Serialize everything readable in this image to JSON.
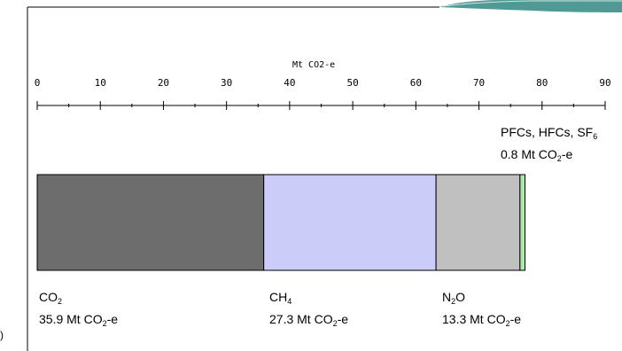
{
  "chart_data": {
    "type": "bar",
    "orientation": "horizontal-stacked",
    "axis": {
      "title": "Mt CO2-e",
      "position": "top",
      "range": [
        0,
        90
      ],
      "ticks": [
        "0",
        "10",
        "20",
        "30",
        "40",
        "50",
        "60",
        "70",
        "80",
        "90"
      ],
      "tick_values": [
        0,
        10,
        20,
        30,
        40,
        50,
        60,
        70,
        80,
        90
      ]
    },
    "segments": [
      {
        "name": "CO2",
        "value": 35.9,
        "color": "#6d6d6d",
        "label_main": "CO",
        "label_sub": "2",
        "value_text": "35.9 Mt CO",
        "value_sub": "2",
        "value_suffix": "-e"
      },
      {
        "name": "CH4",
        "value": 27.3,
        "color": "#ccccf8",
        "label_main": "CH",
        "label_sub": "4",
        "value_text": "27.3 Mt CO",
        "value_sub": "2",
        "value_suffix": "-e"
      },
      {
        "name": "N2O",
        "value": 13.3,
        "color": "#c0c0c0",
        "label_main": "N",
        "label_sub": "2",
        "label_tail": "O",
        "value_text": "13.3 Mt CO",
        "value_sub": "2",
        "value_suffix": "-e"
      },
      {
        "name": "PFCs, HFCs, SF6",
        "value": 0.8,
        "color": "#a6eba6",
        "label_main": "PFCs, HFCs, SF",
        "label_sub": "6",
        "value_text": "0.8 Mt CO",
        "value_sub": "2",
        "value_suffix": "-e"
      }
    ]
  }
}
